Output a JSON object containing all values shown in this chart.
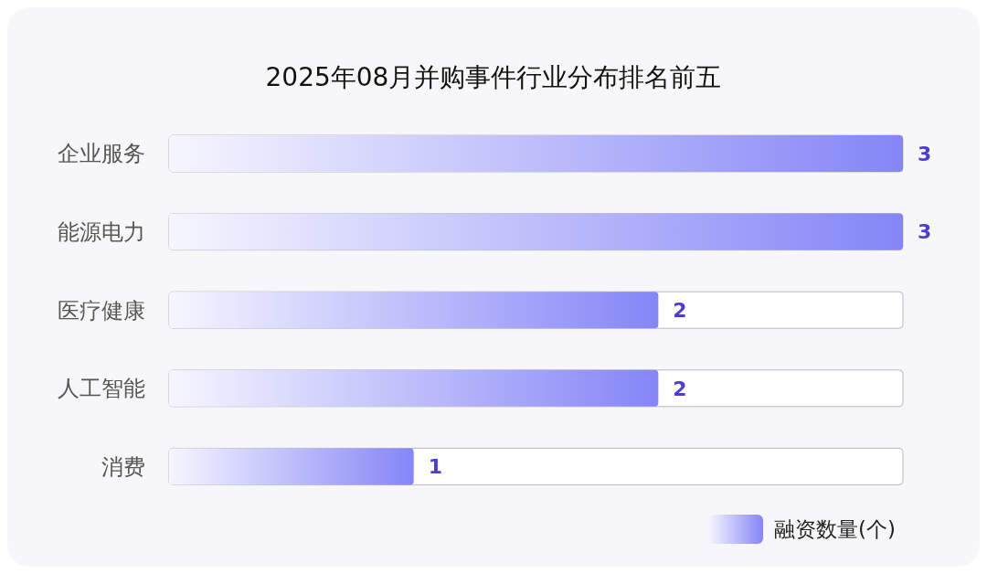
{
  "chart_data": {
    "type": "bar",
    "orientation": "horizontal",
    "title": "2025年08月并购事件行业分布排名前五",
    "categories": [
      "企业服务",
      "能源电力",
      "医疗健康",
      "人工智能",
      "消费"
    ],
    "series": [
      {
        "name": "融资数量(个)",
        "color": "#8585f7",
        "values": [
          3,
          3,
          2,
          2,
          1
        ]
      }
    ],
    "xlim": [
      0,
      3
    ],
    "tick_labels": "y",
    "data_labels": true,
    "legend": "bottom right",
    "grid": false
  }
}
